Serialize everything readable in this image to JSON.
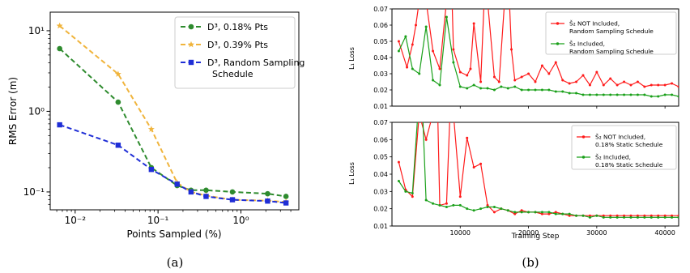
{
  "captions": {
    "a": "(a)",
    "b": "(b)"
  },
  "colors": {
    "green": "#2e8b2e",
    "orange": "#f0b43c",
    "blue": "#1f2ed6",
    "red": "#ff1a1a",
    "green_b": "#1aa01a"
  },
  "chart_data": [
    {
      "type": "line",
      "xscale": "log",
      "yscale": "log",
      "xlabel": "Points Sampled (%)",
      "ylabel": "RMS Error (m)",
      "xlim": [
        0.005,
        5.0
      ],
      "ylim": [
        0.06,
        17
      ],
      "xticks": [
        {
          "v": 0.01,
          "label": "10⁻²"
        },
        {
          "v": 0.1,
          "label": "10⁻¹"
        },
        {
          "v": 1,
          "label": "10⁰"
        }
      ],
      "yticks": [
        {
          "v": 0.1,
          "label": "10⁻¹"
        },
        {
          "v": 1,
          "label": "10⁰"
        },
        {
          "v": 10,
          "label": "10¹"
        }
      ],
      "grid": false,
      "legend_position": "top-right",
      "x": [
        0.0065,
        0.033,
        0.083,
        0.17,
        0.25,
        0.38,
        0.79,
        2.1,
        3.5
      ],
      "series": [
        {
          "name": "D³, 0.18% Pts",
          "color": "green",
          "marker": "circle",
          "values": [
            6.0,
            1.3,
            0.2,
            0.12,
            0.105,
            0.105,
            0.1,
            0.095,
            0.088
          ]
        },
        {
          "name": "D³, 0.39% Pts",
          "color": "orange",
          "marker": "star",
          "values": [
            11.5,
            2.9,
            0.6,
            0.13,
            0.1,
            0.09,
            0.08,
            0.078,
            0.075
          ]
        },
        {
          "name": "D³, Random Sampling Schedule",
          "color": "blue",
          "marker": "square",
          "values": [
            0.68,
            0.38,
            0.19,
            0.125,
            0.1,
            0.088,
            0.08,
            0.077,
            0.073
          ]
        }
      ]
    },
    {
      "type": "line",
      "xlabel": "",
      "ylabel": "L₁ Loss",
      "xlim": [
        0,
        42000
      ],
      "ylim": [
        0.01,
        0.07
      ],
      "yticks": [
        0.01,
        0.02,
        0.03,
        0.04,
        0.05,
        0.06,
        0.07
      ],
      "xticks_unlabeled": [
        10000,
        20000,
        30000,
        40000
      ],
      "legend_position": "top-right",
      "series": [
        {
          "name": "Š₂ NOT Included,\nRandom Sampling Schedule",
          "color": "red",
          "x": [
            1000,
            2200,
            3000,
            3500,
            4000,
            5000,
            6000,
            7000,
            8000,
            8800,
            9000,
            10000,
            11000,
            11500,
            12000,
            13000,
            13500,
            14000,
            15000,
            15700,
            16500,
            17200,
            17500,
            18000,
            19000,
            20000,
            21000,
            22000,
            23000,
            24000,
            25000,
            26000,
            27000,
            28000,
            29000,
            30000,
            31000,
            32000,
            33000,
            34000,
            35000,
            36000,
            37000,
            38000,
            39000,
            40000,
            41000,
            42000
          ],
          "y": [
            0.05,
            0.034,
            0.048,
            0.06,
            0.075,
            0.075,
            0.044,
            0.033,
            0.075,
            0.075,
            0.045,
            0.031,
            0.029,
            0.033,
            0.061,
            0.025,
            0.075,
            0.075,
            0.028,
            0.025,
            0.075,
            0.075,
            0.045,
            0.026,
            0.028,
            0.03,
            0.025,
            0.035,
            0.03,
            0.037,
            0.026,
            0.024,
            0.025,
            0.029,
            0.023,
            0.031,
            0.023,
            0.027,
            0.023,
            0.025,
            0.023,
            0.025,
            0.022,
            0.023,
            0.023,
            0.023,
            0.024,
            0.022
          ]
        },
        {
          "name": "Š₂ Included,\nRandom Sampling Schedule",
          "color": "green_b",
          "x": [
            1000,
            2000,
            3000,
            4000,
            5000,
            6000,
            7000,
            8000,
            9000,
            10000,
            11000,
            12000,
            13000,
            14000,
            15000,
            16000,
            17000,
            18000,
            19000,
            20000,
            21000,
            22000,
            23000,
            24000,
            25000,
            26000,
            27000,
            28000,
            29000,
            30000,
            31000,
            32000,
            33000,
            34000,
            35000,
            36000,
            37000,
            38000,
            39000,
            40000,
            41000,
            42000
          ],
          "y": [
            0.044,
            0.053,
            0.033,
            0.03,
            0.059,
            0.026,
            0.023,
            0.065,
            0.037,
            0.022,
            0.021,
            0.023,
            0.021,
            0.021,
            0.02,
            0.022,
            0.021,
            0.022,
            0.02,
            0.02,
            0.02,
            0.02,
            0.02,
            0.019,
            0.019,
            0.018,
            0.018,
            0.017,
            0.017,
            0.017,
            0.017,
            0.017,
            0.017,
            0.017,
            0.017,
            0.017,
            0.017,
            0.016,
            0.016,
            0.017,
            0.017,
            0.016
          ]
        }
      ]
    },
    {
      "type": "line",
      "xlabel": "Training Step",
      "ylabel": "L₁ Loss",
      "xlim": [
        0,
        42000
      ],
      "ylim": [
        0.01,
        0.07
      ],
      "yticks": [
        0.01,
        0.02,
        0.03,
        0.04,
        0.05,
        0.06,
        0.07
      ],
      "xticks": [
        10000,
        20000,
        30000,
        40000
      ],
      "legend_position": "top-right",
      "series": [
        {
          "name": "Š₂ NOT Included,\n0.18% Static Schedule",
          "color": "red",
          "x": [
            1000,
            2000,
            3000,
            4000,
            5000,
            6000,
            6700,
            7000,
            8000,
            8500,
            9000,
            10000,
            11000,
            12000,
            13000,
            14000,
            15000,
            16000,
            17000,
            18000,
            19000,
            20000,
            21000,
            22000,
            23000,
            24000,
            25000,
            26000,
            27000,
            28000,
            29000,
            30000,
            31000,
            32000,
            33000,
            34000,
            35000,
            36000,
            37000,
            38000,
            39000,
            40000,
            41000,
            42000
          ],
          "y": [
            0.047,
            0.031,
            0.027,
            0.075,
            0.06,
            0.075,
            0.075,
            0.022,
            0.023,
            0.075,
            0.075,
            0.027,
            0.061,
            0.044,
            0.046,
            0.022,
            0.018,
            0.02,
            0.019,
            0.017,
            0.019,
            0.018,
            0.018,
            0.017,
            0.017,
            0.018,
            0.017,
            0.016,
            0.016,
            0.016,
            0.016,
            0.016,
            0.016,
            0.016,
            0.016,
            0.016,
            0.016,
            0.016,
            0.016,
            0.016,
            0.016,
            0.016,
            0.016,
            0.016
          ]
        },
        {
          "name": "Š₂ Included,\n0.18% Static Schedule",
          "color": "green_b",
          "x": [
            1000,
            2000,
            3000,
            3800,
            4500,
            5000,
            6000,
            7000,
            8000,
            9000,
            10000,
            11000,
            12000,
            13000,
            14000,
            15000,
            16000,
            17000,
            18000,
            19000,
            20000,
            21000,
            22000,
            23000,
            24000,
            25000,
            26000,
            27000,
            28000,
            29000,
            30000,
            31000,
            32000,
            33000,
            34000,
            35000,
            36000,
            37000,
            38000,
            39000,
            40000,
            41000,
            42000
          ],
          "y": [
            0.036,
            0.03,
            0.029,
            0.075,
            0.075,
            0.025,
            0.023,
            0.022,
            0.021,
            0.022,
            0.022,
            0.02,
            0.019,
            0.02,
            0.021,
            0.021,
            0.02,
            0.019,
            0.018,
            0.018,
            0.018,
            0.018,
            0.018,
            0.018,
            0.017,
            0.017,
            0.017,
            0.016,
            0.016,
            0.015,
            0.016,
            0.015,
            0.015,
            0.015,
            0.015,
            0.015,
            0.015,
            0.015,
            0.015,
            0.015,
            0.015,
            0.015,
            0.015
          ]
        }
      ]
    }
  ]
}
